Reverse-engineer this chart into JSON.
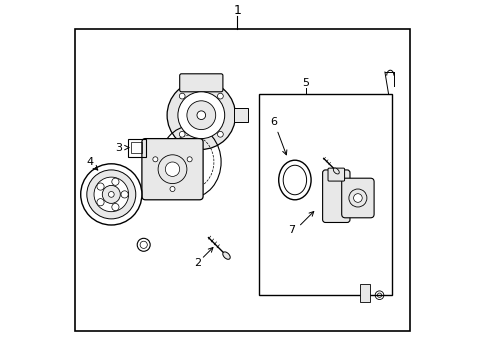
{
  "bg_color": "#ffffff",
  "border_color": "#000000",
  "line_color": "#000000",
  "gray_fill": "#d0d0d0",
  "light_gray": "#e8e8e8",
  "mid_gray": "#b0b0b0",
  "figure_width": 4.89,
  "figure_height": 3.6,
  "dpi": 100
}
